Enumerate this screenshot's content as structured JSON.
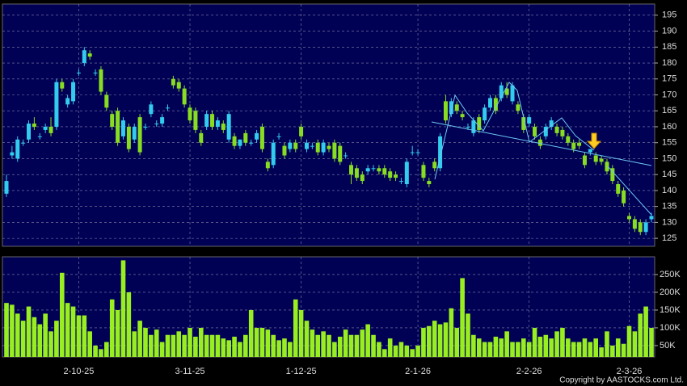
{
  "chart_data": {
    "type": "candlestick",
    "categories": [
      null,
      null,
      null,
      null,
      null,
      null,
      null,
      null,
      null,
      null,
      null,
      null,
      null,
      "2-10-25",
      null,
      null,
      null,
      null,
      null,
      null,
      null,
      null,
      null,
      null,
      null,
      null,
      null,
      null,
      null,
      null,
      null,
      null,
      null,
      "3-11-25",
      null,
      null,
      null,
      null,
      null,
      null,
      null,
      null,
      null,
      null,
      null,
      null,
      null,
      null,
      null,
      null,
      null,
      null,
      null,
      "1-12-25",
      null,
      null,
      null,
      null,
      null,
      null,
      null,
      null,
      null,
      null,
      null,
      null,
      null,
      null,
      null,
      null,
      null,
      null,
      null,
      null,
      "2-1-26",
      null,
      null,
      null,
      null,
      null,
      null,
      null,
      null,
      null,
      null,
      null,
      null,
      null,
      null,
      null,
      null,
      null,
      null,
      null,
      "2-2-26",
      null,
      null,
      null,
      null,
      null,
      null,
      null,
      null,
      null,
      null,
      null,
      null,
      null,
      null,
      null,
      null,
      null,
      "2-3-26",
      null,
      null,
      null,
      null
    ],
    "ohlc": [
      [
        139,
        145,
        138,
        143
      ],
      [
        151,
        154,
        150,
        152
      ],
      [
        150,
        157,
        149,
        156
      ],
      [
        155,
        156,
        154,
        155
      ],
      [
        156,
        162,
        155,
        161
      ],
      [
        161,
        163,
        159,
        160
      ],
      [
        157,
        158,
        156,
        157
      ],
      [
        159,
        161,
        158,
        160
      ],
      [
        160,
        163,
        157,
        158
      ],
      [
        160,
        175,
        159,
        174
      ],
      [
        174,
        175,
        171,
        172
      ],
      [
        167,
        170,
        166,
        169
      ],
      [
        168,
        175,
        167,
        174
      ],
      [
        177,
        178,
        176,
        177
      ],
      [
        180,
        185,
        179,
        184
      ],
      [
        183,
        184,
        181,
        182
      ],
      [
        177,
        178,
        176,
        177
      ],
      [
        178,
        179,
        170,
        171
      ],
      [
        170,
        171,
        165,
        166
      ],
      [
        164,
        165,
        159,
        160
      ],
      [
        165,
        166,
        154,
        155
      ],
      [
        157,
        163,
        156,
        162
      ],
      [
        160,
        161,
        152,
        153
      ],
      [
        156,
        161,
        155,
        160
      ],
      [
        163,
        164,
        151,
        152
      ],
      [
        160,
        161,
        159,
        160
      ],
      [
        164,
        168,
        163,
        167
      ],
      [
        161,
        162,
        160,
        161
      ],
      [
        161,
        164,
        160,
        163
      ],
      [
        166,
        167,
        165,
        166
      ],
      [
        175,
        176,
        172,
        173
      ],
      [
        174,
        175,
        171,
        172
      ],
      [
        172,
        173,
        166,
        167
      ],
      [
        166,
        167,
        161,
        162
      ],
      [
        165,
        166,
        158,
        159
      ],
      [
        158,
        159,
        154,
        155
      ],
      [
        160,
        165,
        159,
        164
      ],
      [
        164,
        165,
        159,
        160
      ],
      [
        160,
        163,
        159,
        162
      ],
      [
        161,
        162,
        158,
        159
      ],
      [
        156,
        165,
        155,
        164
      ],
      [
        157,
        158,
        153,
        154
      ],
      [
        154,
        156,
        153,
        156
      ],
      [
        158,
        159,
        154,
        155
      ],
      [
        155,
        156,
        154,
        155
      ],
      [
        156,
        159,
        155,
        158
      ],
      [
        160,
        161,
        152,
        153
      ],
      [
        149,
        150,
        146,
        147
      ],
      [
        148,
        156,
        147,
        155
      ],
      [
        157,
        158,
        156,
        157
      ],
      [
        154,
        155,
        150,
        151
      ],
      [
        153,
        156,
        152,
        155
      ],
      [
        155,
        156,
        152,
        153
      ],
      [
        160,
        161,
        156,
        157
      ],
      [
        153,
        156,
        152,
        155
      ],
      [
        154,
        155,
        153,
        154
      ],
      [
        155,
        156,
        151,
        152
      ],
      [
        152,
        156,
        151,
        155
      ],
      [
        154,
        155,
        152,
        153
      ],
      [
        155,
        156,
        149,
        150
      ],
      [
        154,
        155,
        148,
        149
      ],
      [
        151,
        152,
        150,
        151
      ],
      [
        148,
        149,
        142,
        145
      ],
      [
        147,
        148,
        143,
        144
      ],
      [
        145,
        146,
        142,
        143
      ],
      [
        146,
        148,
        145,
        147
      ],
      [
        147,
        148,
        146,
        147
      ],
      [
        147,
        148,
        145,
        146
      ],
      [
        147,
        148,
        144,
        145
      ],
      [
        146,
        147,
        143,
        144
      ],
      [
        145,
        146,
        143,
        144
      ],
      [
        143,
        144,
        142,
        143
      ],
      [
        142,
        150,
        141,
        149
      ],
      [
        152,
        154,
        151,
        152
      ],
      [
        152,
        153,
        151,
        152
      ],
      [
        148,
        149,
        143,
        144
      ],
      [
        143,
        144,
        141,
        142
      ],
      [
        149,
        150,
        146,
        147
      ],
      [
        147,
        158,
        146,
        157
      ],
      [
        168,
        170,
        161,
        162
      ],
      [
        164,
        169,
        163,
        168
      ],
      [
        167,
        168,
        164,
        165
      ],
      [
        164,
        165,
        162,
        163
      ],
      [
        160,
        161,
        159,
        160
      ],
      [
        158,
        163,
        157,
        162
      ],
      [
        163,
        164,
        158,
        159
      ],
      [
        162,
        167,
        161,
        166
      ],
      [
        166,
        170,
        165,
        169
      ],
      [
        169,
        170,
        164,
        165
      ],
      [
        169,
        174,
        168,
        173
      ],
      [
        172,
        174,
        169,
        170
      ],
      [
        168,
        174,
        167,
        173
      ],
      [
        167,
        168,
        164,
        165
      ],
      [
        163,
        164,
        158,
        159
      ],
      [
        161,
        164,
        160,
        163
      ],
      [
        160,
        161,
        156,
        157
      ],
      [
        156,
        157,
        153,
        154
      ],
      [
        157,
        161,
        156,
        160
      ],
      [
        160,
        163,
        159,
        162
      ],
      [
        160,
        161,
        157,
        158
      ],
      [
        159,
        160,
        156,
        157
      ],
      [
        157,
        158,
        154,
        155
      ],
      [
        155,
        156,
        152,
        153
      ],
      [
        155,
        156,
        153,
        154
      ],
      [
        151,
        152,
        147,
        148
      ],
      [
        152,
        153,
        151,
        153
      ],
      [
        151,
        152,
        148,
        149
      ],
      [
        150,
        151,
        148,
        149
      ],
      [
        149,
        150,
        145,
        146
      ],
      [
        147,
        148,
        142,
        143
      ],
      [
        142,
        143,
        138,
        139
      ],
      [
        140,
        141,
        135,
        136
      ],
      [
        132,
        133,
        130,
        131
      ],
      [
        131,
        132,
        127,
        128
      ],
      [
        130,
        131,
        126,
        127
      ],
      [
        127,
        131,
        126,
        130
      ],
      [
        131,
        133,
        130,
        132
      ]
    ],
    "up_color": "#33ccee",
    "down_color": "#88dd22",
    "ylim": [
      122.5,
      198.5
    ],
    "yticks": [
      125,
      130,
      135,
      140,
      145,
      150,
      155,
      160,
      165,
      170,
      175,
      180,
      185,
      190,
      195
    ],
    "volume": [
      170000,
      165000,
      140000,
      120000,
      160000,
      130000,
      110000,
      140000,
      90000,
      120000,
      255000,
      170000,
      160000,
      135000,
      135000,
      90000,
      50000,
      40000,
      60000,
      180000,
      150000,
      290000,
      200000,
      90000,
      120000,
      100000,
      80000,
      95000,
      60000,
      80000,
      80000,
      90000,
      80000,
      100000,
      75000,
      100000,
      80000,
      80000,
      80000,
      70000,
      65000,
      75000,
      60000,
      80000,
      150000,
      100000,
      100000,
      95000,
      80000,
      65000,
      70000,
      60000,
      180000,
      150000,
      120000,
      95000,
      80000,
      90000,
      80000,
      60000,
      75000,
      95000,
      80000,
      80000,
      95000,
      110000,
      80000,
      60000,
      40000,
      70000,
      50000,
      60000,
      50000,
      40000,
      50000,
      100000,
      105000,
      120000,
      110000,
      115000,
      155000,
      100000,
      240000,
      140000,
      80000,
      70000,
      60000,
      60000,
      75000,
      70000,
      90000,
      60000,
      60000,
      70000,
      60000,
      100000,
      75000,
      80000,
      70000,
      90000,
      100000,
      70000,
      60000,
      60000,
      70000,
      60000,
      70000,
      45000,
      90000,
      50000,
      70000,
      55000,
      105000,
      90000,
      140000,
      160000,
      100000
    ],
    "volume_color": "#99ee22",
    "volume_ylim": [
      18000,
      300000
    ],
    "volume_yticks": [
      {
        "value": 50000,
        "label": "50K"
      },
      {
        "value": 100000,
        "label": "100K"
      },
      {
        "value": 150000,
        "label": "150K"
      },
      {
        "value": 200000,
        "label": "200K"
      },
      {
        "value": 250000,
        "label": "250K"
      }
    ],
    "grid": true,
    "credit": "Copyright by AASTOCKS.com Ltd."
  }
}
